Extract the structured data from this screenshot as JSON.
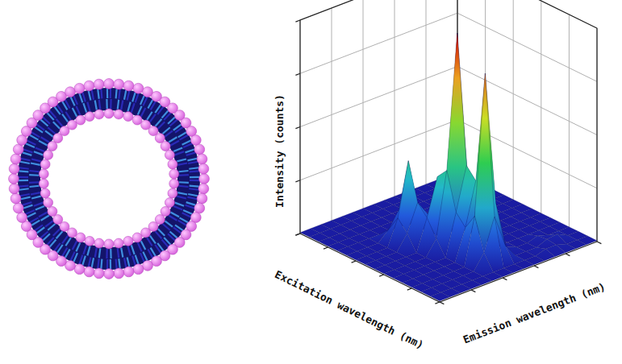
{
  "chart_data": {
    "type": "surface",
    "x_label": "Emission wavelength (nm)",
    "y_label": "Excitation wavelength (nm)",
    "z_label": "Intensity (counts)",
    "x": [
      0,
      1,
      2,
      3,
      4,
      5,
      6,
      7,
      8,
      9,
      10,
      11,
      12,
      13,
      14,
      15
    ],
    "y": [
      0,
      1,
      2,
      3,
      4,
      5,
      6,
      7,
      8,
      9,
      10,
      11,
      12,
      13,
      14,
      15
    ],
    "z": [
      [
        0.02,
        0.02,
        0.02,
        0.02,
        0.02,
        0.02,
        0.02,
        0.02,
        0.02,
        0.02,
        0.02,
        0.02,
        0.02,
        0.02,
        0.02,
        0.02
      ],
      [
        0.02,
        0.02,
        0.02,
        0.02,
        0.02,
        0.02,
        0.02,
        0.02,
        0.02,
        0.02,
        0.02,
        0.08,
        0.08,
        0.02,
        0.02,
        0.02
      ],
      [
        0.02,
        0.02,
        0.02,
        0.02,
        0.02,
        0.02,
        0.3,
        0.9,
        0.3,
        0.02,
        0.02,
        0.02,
        0.1,
        0.12,
        0.02,
        0.02
      ],
      [
        0.02,
        0.02,
        0.02,
        0.02,
        0.02,
        0.02,
        0.9,
        3.5,
        1.0,
        0.1,
        0.02,
        0.02,
        0.08,
        0.02,
        0.02,
        0.02
      ],
      [
        0.02,
        0.02,
        0.02,
        0.02,
        0.02,
        0.02,
        0.6,
        1.4,
        0.5,
        0.02,
        0.02,
        0.02,
        0.02,
        0.02,
        0.02,
        0.02
      ],
      [
        0.02,
        0.02,
        0.02,
        0.02,
        0.02,
        0.02,
        0.8,
        1.6,
        0.4,
        0.02,
        0.02,
        0.02,
        0.02,
        0.02,
        0.02,
        0.02
      ],
      [
        0.02,
        0.02,
        0.02,
        0.02,
        0.02,
        0.3,
        1.5,
        4.0,
        1.2,
        0.1,
        0.02,
        0.02,
        0.02,
        0.02,
        0.02,
        0.02
      ],
      [
        0.02,
        0.02,
        0.02,
        0.02,
        0.02,
        0.6,
        1.3,
        1.0,
        0.2,
        0.02,
        0.02,
        0.02,
        0.02,
        0.02,
        0.02,
        0.02
      ],
      [
        0.02,
        0.02,
        0.02,
        0.02,
        0.3,
        0.8,
        0.5,
        0.02,
        0.02,
        0.02,
        0.02,
        0.02,
        0.02,
        0.02,
        0.02,
        0.02
      ],
      [
        0.02,
        0.02,
        0.02,
        0.02,
        0.5,
        1.5,
        0.4,
        0.02,
        0.02,
        0.02,
        0.02,
        0.02,
        0.02,
        0.02,
        0.02,
        0.02
      ],
      [
        0.02,
        0.02,
        0.02,
        0.02,
        0.2,
        0.5,
        0.15,
        0.02,
        0.02,
        0.02,
        0.02,
        0.02,
        0.02,
        0.02,
        0.02,
        0.02
      ],
      [
        0.02,
        0.02,
        0.02,
        0.02,
        0.02,
        0.02,
        0.02,
        0.02,
        0.02,
        0.02,
        0.06,
        0.02,
        0.02,
        0.02,
        0.02,
        0.02
      ],
      [
        0.02,
        0.02,
        0.02,
        0.02,
        0.02,
        0.02,
        0.02,
        0.02,
        0.02,
        0.02,
        0.02,
        0.02,
        0.02,
        0.02,
        0.02,
        0.02
      ],
      [
        0.02,
        0.02,
        0.02,
        0.02,
        0.02,
        0.02,
        0.02,
        0.02,
        0.02,
        0.02,
        0.02,
        0.02,
        0.02,
        0.02,
        0.02,
        0.02
      ],
      [
        0.02,
        0.02,
        0.02,
        0.02,
        0.02,
        0.02,
        0.02,
        0.02,
        0.02,
        0.02,
        0.02,
        0.02,
        0.02,
        0.02,
        0.02,
        0.02
      ],
      [
        0.02,
        0.02,
        0.02,
        0.02,
        0.02,
        0.02,
        0.02,
        0.02,
        0.02,
        0.02,
        0.02,
        0.02,
        0.02,
        0.02,
        0.02,
        0.02
      ]
    ],
    "xlim": [
      0,
      15
    ],
    "ylim": [
      0,
      15
    ],
    "zlim": [
      0,
      4
    ],
    "xticks": [
      0,
      3,
      6,
      9,
      12,
      15
    ],
    "yticks": [
      0,
      3,
      6,
      9,
      12,
      15
    ],
    "zticks": [
      0,
      1,
      2,
      3,
      4
    ],
    "tick_labels": false,
    "grid": true
  }
}
